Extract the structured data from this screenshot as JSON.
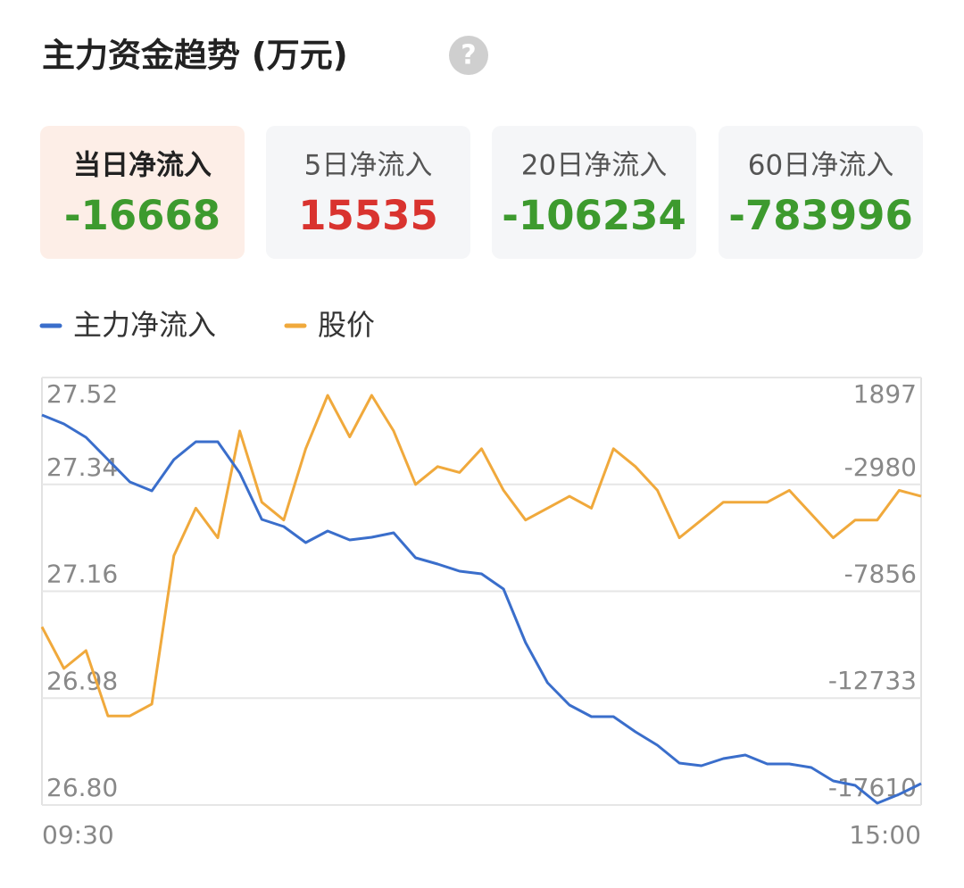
{
  "header": {
    "title": "主力资金趋势 (万元)",
    "help_icon": "?"
  },
  "cards": [
    {
      "label": "当日净流入",
      "value": -16668,
      "color": "#3d9a2e",
      "highlight": true
    },
    {
      "label": "5日净流入",
      "value": 15535,
      "color": "#d9332f",
      "highlight": false
    },
    {
      "label": "20日净流入",
      "value": -106234,
      "color": "#3d9a2e",
      "highlight": false
    },
    {
      "label": "60日净流入",
      "value": -783996,
      "color": "#3d9a2e",
      "highlight": false
    }
  ],
  "chart_data": {
    "type": "line",
    "xlim": [
      0,
      240
    ],
    "xticks": [
      {
        "value": 0,
        "label": "09:30"
      },
      {
        "value": 240,
        "label": "15:00"
      }
    ],
    "x": [
      0,
      6,
      12,
      18,
      24,
      30,
      36,
      42,
      48,
      54,
      60,
      66,
      72,
      78,
      84,
      90,
      96,
      102,
      108,
      114,
      120,
      126,
      132,
      138,
      144,
      150,
      156,
      162,
      168,
      174,
      180,
      186,
      192,
      198,
      204,
      210,
      216,
      222,
      228,
      234,
      240
    ],
    "ylim": [
      26.8,
      27.52
    ],
    "yticks": [
      27.52,
      27.34,
      27.16,
      26.98,
      {
        "value": 26.8,
        "label": "26.80"
      }
    ],
    "y2lim": [
      -17610,
      1897
    ],
    "y2ticks": [
      1897,
      -2980,
      -7856,
      -12733,
      -17610
    ],
    "grid": true,
    "series": [
      {
        "name": "主力净流入",
        "color": "#3a6ecb",
        "axis": "y2",
        "values": [
          187,
          -221,
          -832,
          -1850,
          -2868,
          -3275,
          -1850,
          -1035,
          -1035,
          -2461,
          -4578,
          -4904,
          -5637,
          -5108,
          -5515,
          -5393,
          -5189,
          -6329,
          -6615,
          -6940,
          -7063,
          -7755,
          -10198,
          -12031,
          -13049,
          -13579,
          -13579,
          -14271,
          -14882,
          -15696,
          -15818,
          -15493,
          -15330,
          -15737,
          -15737,
          -15900,
          -16511,
          -16714,
          -17529,
          -17122,
          -16633
        ]
      },
      {
        "name": "股价",
        "color": "#f0a93c",
        "values": [
          27.1,
          27.03,
          27.06,
          26.95,
          26.95,
          26.97,
          27.22,
          27.3,
          27.25,
          27.43,
          27.31,
          27.28,
          27.4,
          27.49,
          27.42,
          27.49,
          27.43,
          27.34,
          27.37,
          27.36,
          27.4,
          27.33,
          27.28,
          27.3,
          27.32,
          27.3,
          27.4,
          27.37,
          27.33,
          27.25,
          27.28,
          27.31,
          27.31,
          27.31,
          27.33,
          27.29,
          27.25,
          27.28,
          27.28,
          27.33,
          27.32
        ]
      }
    ]
  }
}
